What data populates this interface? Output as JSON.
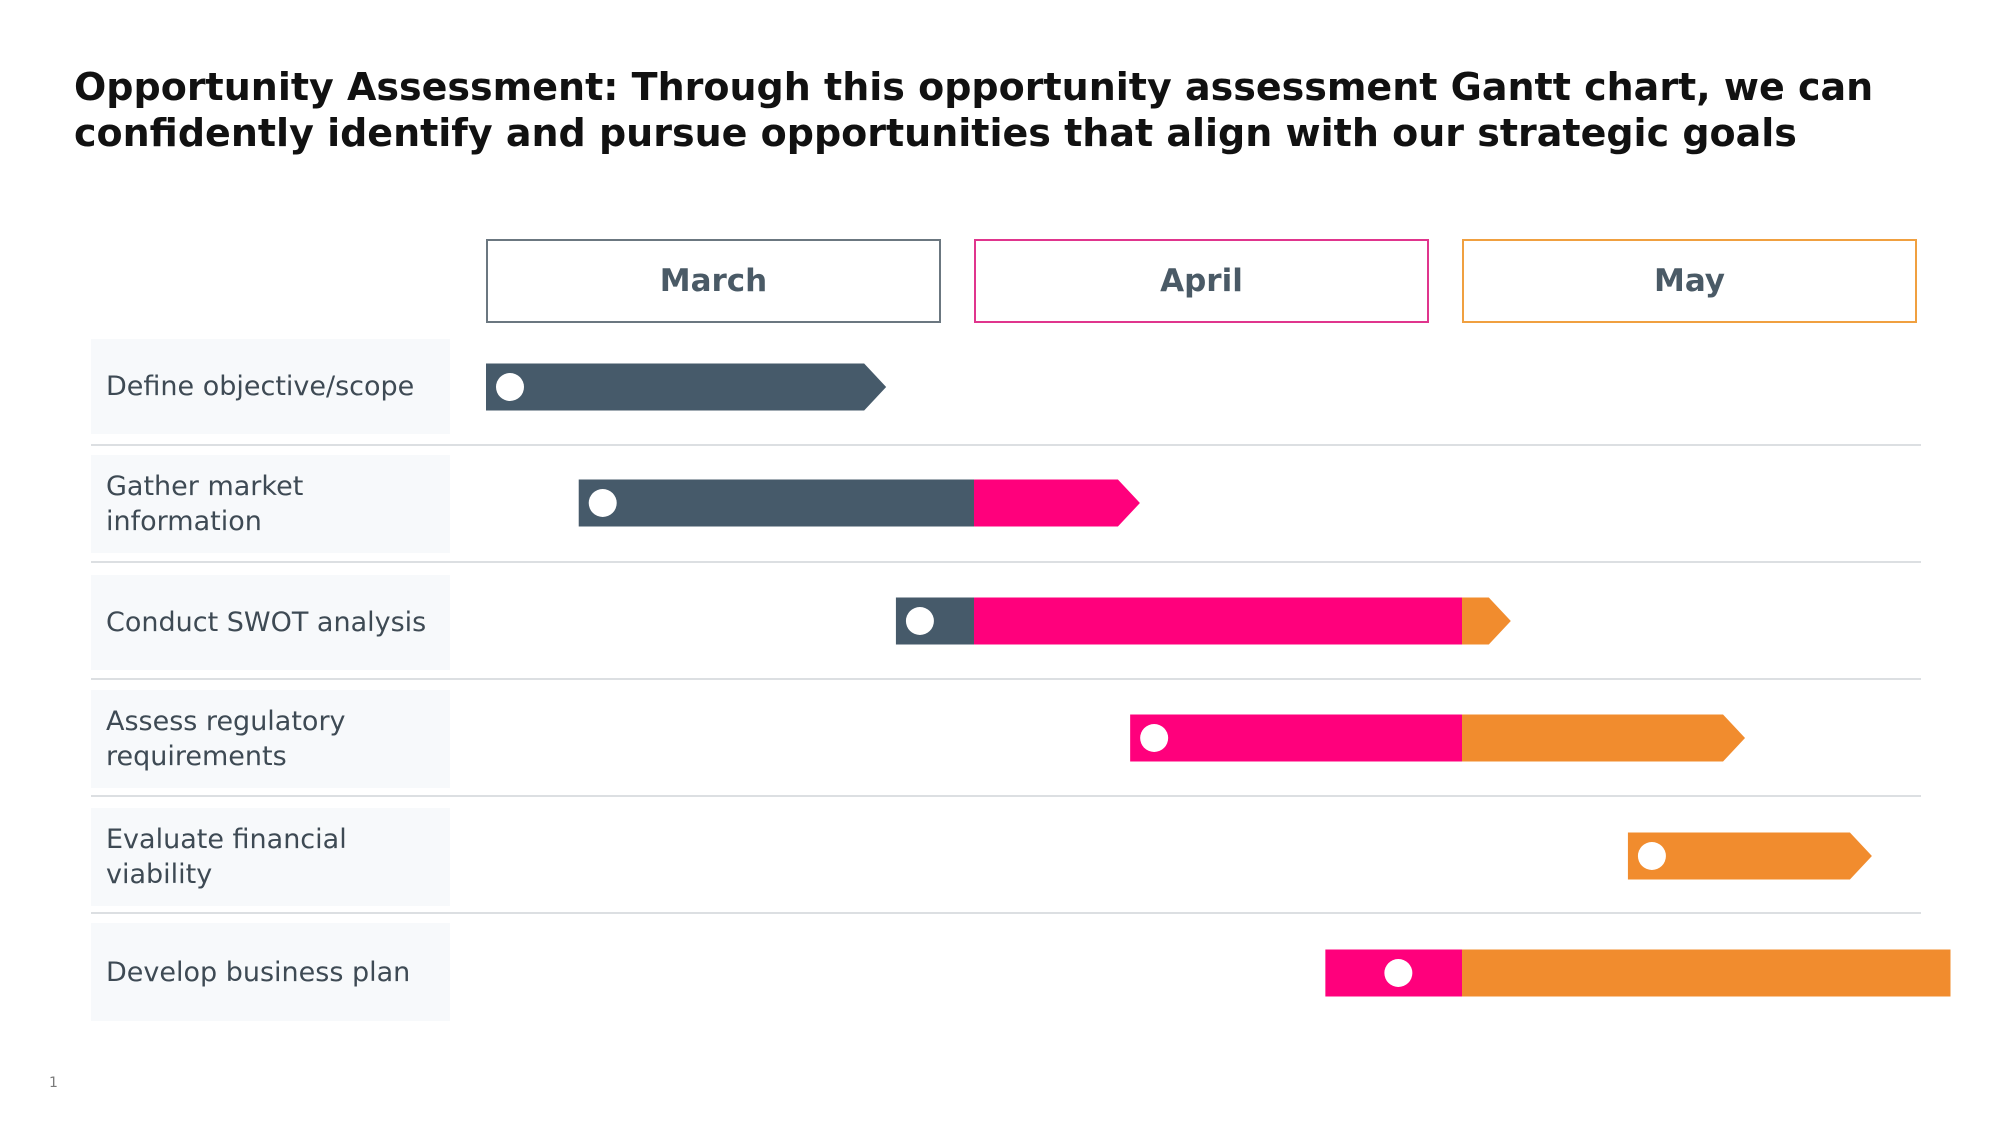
{
  "slide": {
    "title": "Opportunity Assessment: Through this opportunity assessment Gantt chart, we can\nconfidently identify and pursue opportunities that align with our strategic goals",
    "page_number": "1"
  },
  "colors": {
    "march": "#465a6a",
    "april": "#ff007c",
    "may": "#f18c2e",
    "march_border": "#6b7780",
    "april_border": "#e0358d",
    "may_border": "#f0a040"
  },
  "chart_data": {
    "type": "gantt",
    "title": "",
    "periods": [
      {
        "label": "March",
        "start": 0,
        "end": 1,
        "color": "#465a6a",
        "border": "#6b7780"
      },
      {
        "label": "April",
        "start": 1,
        "end": 2,
        "color": "#ff007c",
        "border": "#e0358d"
      },
      {
        "label": "May",
        "start": 2,
        "end": 3,
        "color": "#f18c2e",
        "border": "#f0a040"
      }
    ],
    "x_unit": "months from start of March",
    "xlim": [
      0,
      3
    ],
    "tasks": [
      {
        "name": "Define objective/scope",
        "start": 0.0,
        "end": 0.82
      },
      {
        "name": "Gather market\ninformation",
        "start": 0.19,
        "end": 1.34
      },
      {
        "name": "Conduct SWOT analysis",
        "start": 0.84,
        "end": 2.1
      },
      {
        "name": "Assess regulatory\nrequirements",
        "start": 1.32,
        "end": 2.58
      },
      {
        "name": "Evaluate financial\nviability",
        "start": 2.34,
        "end": 2.84
      },
      {
        "name": "Develop business plan",
        "start": 1.72,
        "end": 3.09
      }
    ]
  }
}
